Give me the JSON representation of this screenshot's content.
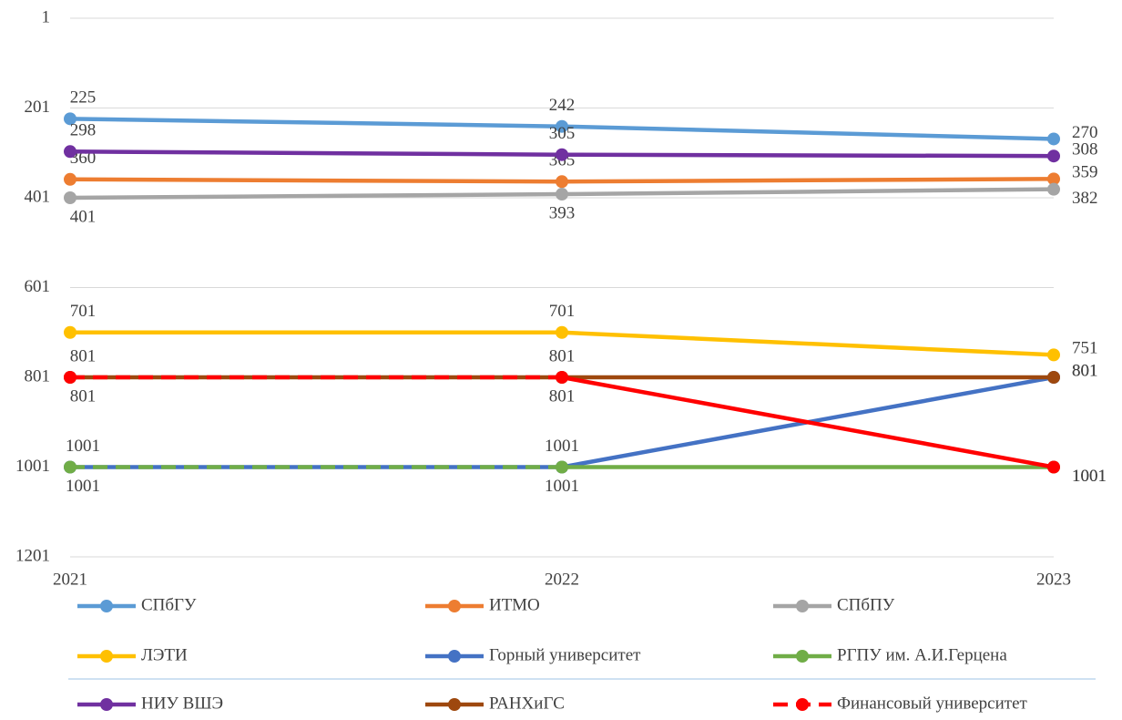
{
  "chart_data": {
    "type": "line",
    "categories": [
      "2021",
      "2022",
      "2023"
    ],
    "ylim": [
      1,
      1201
    ],
    "yticks": [
      1,
      201,
      401,
      601,
      801,
      1001,
      1201
    ],
    "y_inverted": true,
    "grid": true,
    "legend": "bottom",
    "series": [
      {
        "name": "СПбГУ",
        "color": "#5b9bd5",
        "values": [
          225,
          242,
          270
        ]
      },
      {
        "name": "ИТМО",
        "color": "#ed7d31",
        "values": [
          360,
          365,
          359
        ]
      },
      {
        "name": "СПбПУ",
        "color": "#a5a5a5",
        "values": [
          401,
          393,
          382
        ]
      },
      {
        "name": "ЛЭТИ",
        "color": "#ffc000",
        "values": [
          701,
          701,
          751
        ]
      },
      {
        "name": "Горный университет",
        "color": "#4472c4",
        "values": [
          1001,
          1001,
          801
        ]
      },
      {
        "name": "РГПУ им. А.И.Герцена",
        "color": "#70ad47",
        "values": [
          1001,
          1001,
          1001
        ],
        "dashed_segments": [
          0
        ]
      },
      {
        "name": "НИУ ВШЭ",
        "color": "#7030a0",
        "values": [
          298,
          305,
          308
        ]
      },
      {
        "name": "РАНХиГС",
        "color": "#9e480e",
        "values": [
          801,
          801,
          801
        ]
      },
      {
        "name": "Финансовый университет",
        "color": "#ff0000",
        "values": [
          801,
          801,
          1001
        ],
        "dashed_segments": [
          0
        ],
        "legend_dashed": true
      }
    ]
  }
}
